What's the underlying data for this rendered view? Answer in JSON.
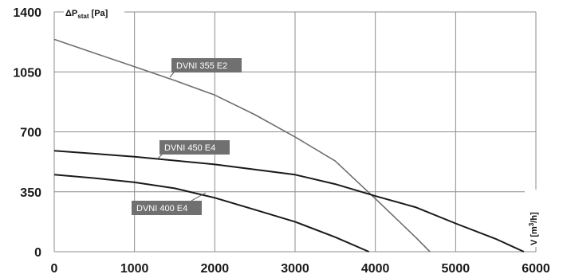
{
  "chart_data": {
    "type": "line",
    "xlabel": "V [m³/h]",
    "ylabel": "ΔPstat [Pa]",
    "ylabel_parts": {
      "delta": "Δ",
      "p": "P",
      "sub": "stat",
      "unit": " [Pa]"
    },
    "xlabel_parts": {
      "v": "V [m",
      "sup": "3",
      "unit": "/h]"
    },
    "xlim": [
      0,
      6000
    ],
    "ylim": [
      0,
      1400
    ],
    "xticks": [
      "0",
      "1000",
      "2000",
      "3000",
      "4000",
      "5000",
      "6000"
    ],
    "yticks": [
      "0",
      "350",
      "700",
      "1050",
      "1400"
    ],
    "grid": true,
    "series": [
      {
        "name": "DVNI 355 E2",
        "color": "#6e6e6e",
        "x": [
          0,
          500,
          1000,
          1500,
          2000,
          2500,
          3000,
          3500,
          4000,
          4500,
          4680
        ],
        "y": [
          1240,
          1160,
          1080,
          1000,
          915,
          800,
          670,
          530,
          310,
          85,
          0
        ]
      },
      {
        "name": "DVNI 450 E4",
        "color": "#1a1a1a",
        "x": [
          0,
          1000,
          2000,
          3000,
          3500,
          4000,
          4500,
          5000,
          5500,
          5850
        ],
        "y": [
          590,
          555,
          510,
          450,
          395,
          325,
          260,
          165,
          75,
          0
        ]
      },
      {
        "name": "DVNI 400 E4",
        "color": "#1a1a1a",
        "x": [
          0,
          500,
          1000,
          1500,
          2000,
          2500,
          3000,
          3500,
          3920
        ],
        "y": [
          450,
          430,
          405,
          370,
          315,
          245,
          175,
          85,
          0
        ]
      }
    ]
  }
}
